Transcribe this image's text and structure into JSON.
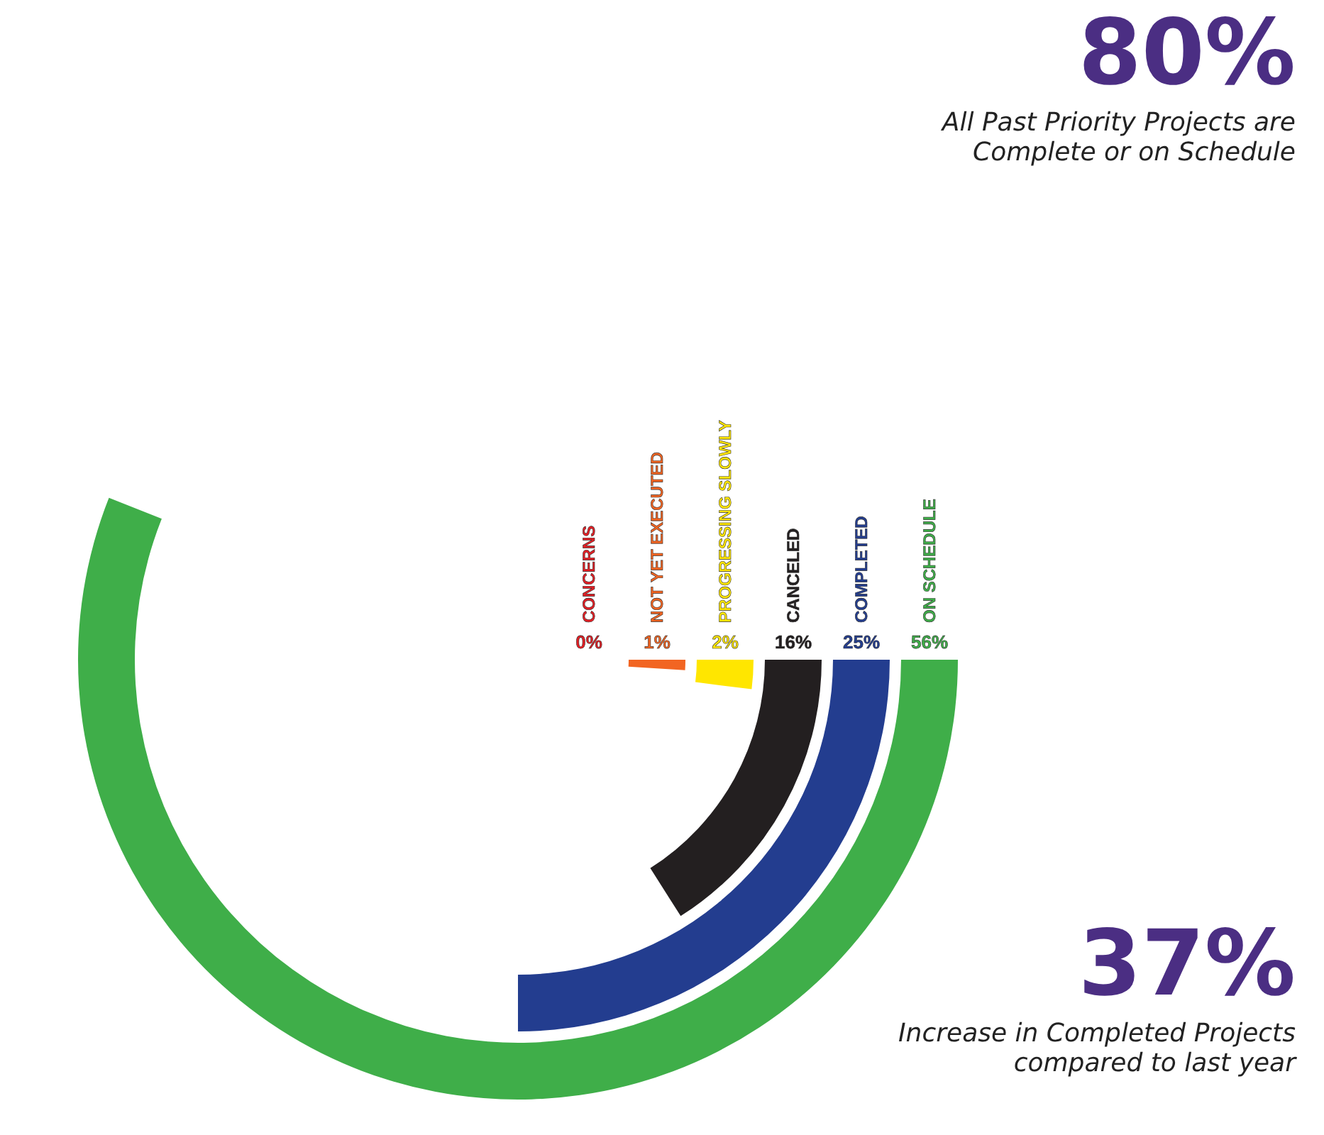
{
  "chart_data": {
    "type": "other",
    "categories": [
      "CONCERNS",
      "NOT YET EXECUTED",
      "PROGRESSING SLOWLY",
      "CANCELED",
      "COMPLETED",
      "ON SCHEDULE"
    ],
    "values": [
      0,
      1,
      2,
      16,
      25,
      56
    ],
    "colors": [
      "#e31e24",
      "#f26522",
      "#ffe600",
      "#231f20",
      "#233d8f",
      "#3fae49"
    ],
    "data_labels": true,
    "value_labels": [
      "0%",
      "1%",
      "2%",
      "16%",
      "25%",
      "56%"
    ],
    "annotations": [
      "80%",
      "All Past Priority Projects are Complete or on Schedule",
      "37%",
      "Increase in Completed Projects compared to last year"
    ]
  }
}
